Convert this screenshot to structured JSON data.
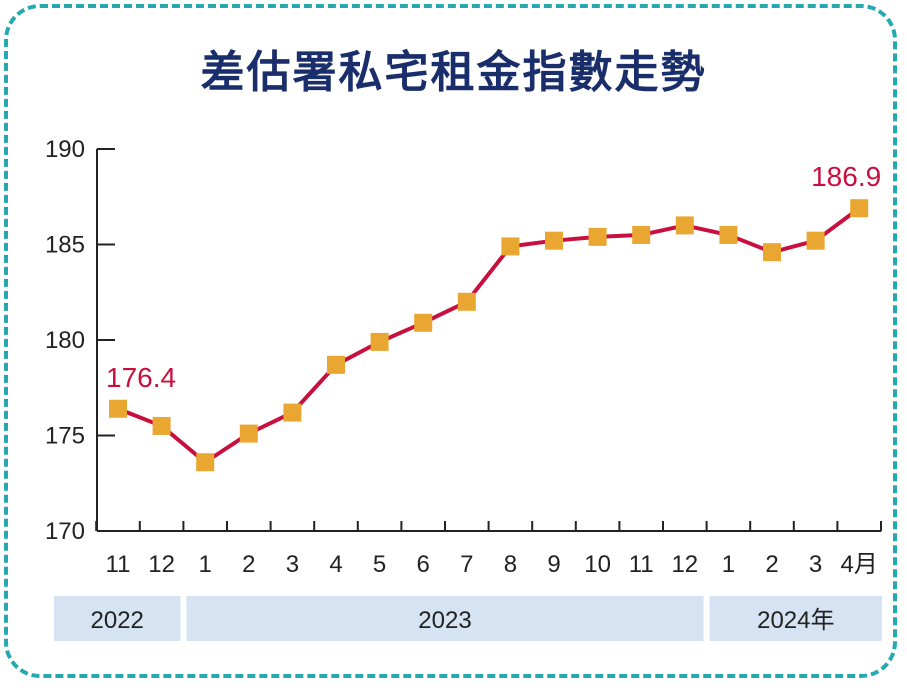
{
  "title": "差估署私宅租金指數走勢",
  "colors": {
    "line": "#c8103e",
    "marker": "#e9a631",
    "title": "#1a2e6b",
    "frame": "#26a8b0",
    "year_band": "#d6e3f3",
    "label": "#c8103e"
  },
  "chart_data": {
    "type": "line",
    "title": "差估署私宅租金指數走勢",
    "categories": [
      "11",
      "12",
      "1",
      "2",
      "3",
      "4",
      "5",
      "6",
      "7",
      "8",
      "9",
      "10",
      "11",
      "12",
      "1",
      "2",
      "3",
      "4月"
    ],
    "values": [
      176.4,
      175.5,
      173.6,
      175.1,
      176.2,
      178.7,
      179.9,
      180.9,
      182.0,
      184.9,
      185.2,
      185.4,
      185.5,
      186.0,
      185.5,
      184.6,
      185.2,
      186.9
    ],
    "ylim": [
      170,
      190
    ],
    "yticks": [
      "190",
      "185",
      "180",
      "175",
      "170"
    ],
    "years": [
      {
        "label": "2022",
        "from": 0,
        "to": 1
      },
      {
        "label": "2023",
        "from": 2,
        "to": 13
      },
      {
        "label": "2024年",
        "from": 14,
        "to": 17
      }
    ],
    "annotations": [
      {
        "index": 0,
        "text": "176.4"
      },
      {
        "index": 17,
        "text": "186.9"
      }
    ],
    "grid": false,
    "legend": "none"
  }
}
